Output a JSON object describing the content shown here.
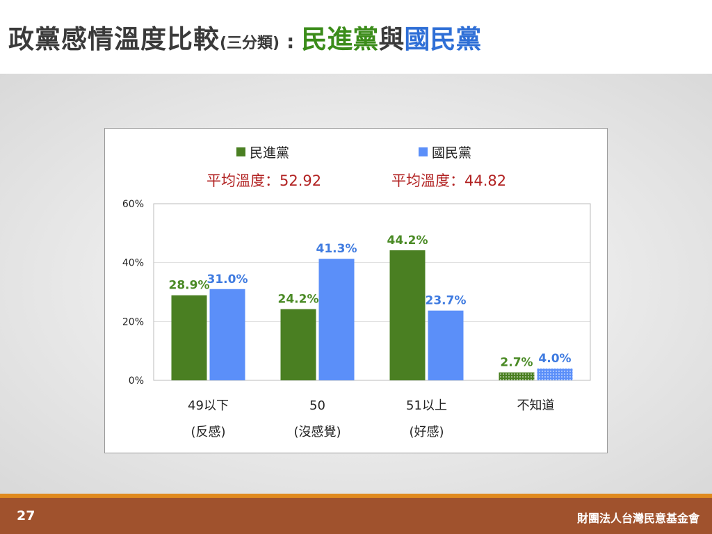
{
  "header": {
    "title_main": "政黨感情溫度比較",
    "title_sub": "(三分類)",
    "colon": ":",
    "party_a": "民進黨",
    "connector": "與",
    "party_b": "國民黨"
  },
  "legend": {
    "dpp_label": "民進黨",
    "kmt_label": "國民黨"
  },
  "averages": {
    "dpp": "平均溫度：52.92",
    "kmt": "平均溫度：44.82"
  },
  "footer": {
    "page_number": "27",
    "organization": "財團法人台灣民意基金會"
  },
  "colors": {
    "dpp": "#4a7f22",
    "kmt": "#5b8ff9",
    "dpp_label": "#4a8a25",
    "kmt_label": "#3f7be0"
  },
  "chart_data": {
    "type": "bar",
    "categories": [
      [
        "49以下",
        "(反感)"
      ],
      [
        "50",
        "(沒感覺)"
      ],
      [
        "51以上",
        "(好感)"
      ],
      [
        "不知道",
        ""
      ]
    ],
    "series": [
      {
        "name": "民進黨",
        "values": [
          28.9,
          24.2,
          44.2,
          2.7
        ],
        "labels": [
          "28.9%",
          "24.2%",
          "44.2%",
          "2.7%"
        ]
      },
      {
        "name": "國民黨",
        "values": [
          31.0,
          41.3,
          23.7,
          4.0
        ],
        "labels": [
          "31.0%",
          "41.3%",
          "23.7%",
          "4.0%"
        ]
      }
    ],
    "yticks": [
      "0%",
      "20%",
      "40%",
      "60%"
    ],
    "ylim": [
      0,
      60
    ],
    "grid": true,
    "legend_position": "top",
    "patterned_category_index": 3
  }
}
